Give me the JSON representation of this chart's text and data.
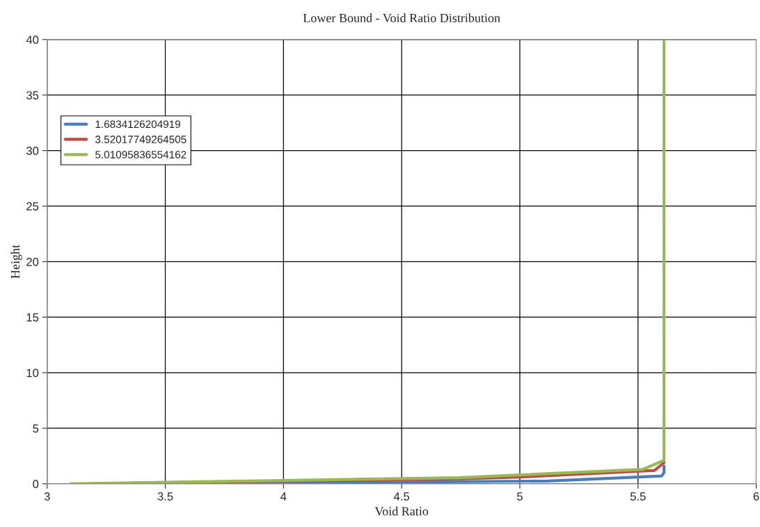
{
  "chart_data": {
    "type": "line",
    "title": "Lower Bound - Void Ratio Distribution",
    "xlabel": "Void Ratio",
    "ylabel": "Height",
    "xlim": [
      3,
      6
    ],
    "xticks": [
      3,
      3.5,
      4,
      4.5,
      5,
      5.5,
      6
    ],
    "ylim": [
      0,
      40
    ],
    "yticks": [
      0,
      5,
      10,
      15,
      20,
      25,
      30,
      35,
      40
    ],
    "grid": true,
    "legend": "top left",
    "marker": "none",
    "line_style": "solid",
    "series": [
      {
        "name": "1.6834126204919",
        "color": "#4a7ebb",
        "x": [
          3.48,
          4.0,
          4.5,
          5.12,
          5.6,
          5.61,
          5.61
        ],
        "values": [
          0,
          0.08,
          0.15,
          0.25,
          0.7,
          1.0,
          1.6
        ]
      },
      {
        "name": "3.52017749264505",
        "color": "#be4b48",
        "x": [
          3.2,
          4.0,
          4.75,
          5.0,
          5.57,
          5.61
        ],
        "values": [
          0,
          0.25,
          0.45,
          0.6,
          1.2,
          1.9
        ]
      },
      {
        "name": "5.01095836554162",
        "color": "#98b954",
        "x": [
          3.1,
          4.0,
          4.74,
          5.52,
          5.61,
          5.61
        ],
        "values": [
          0,
          0.3,
          0.55,
          1.3,
          2.1,
          40
        ]
      }
    ]
  }
}
